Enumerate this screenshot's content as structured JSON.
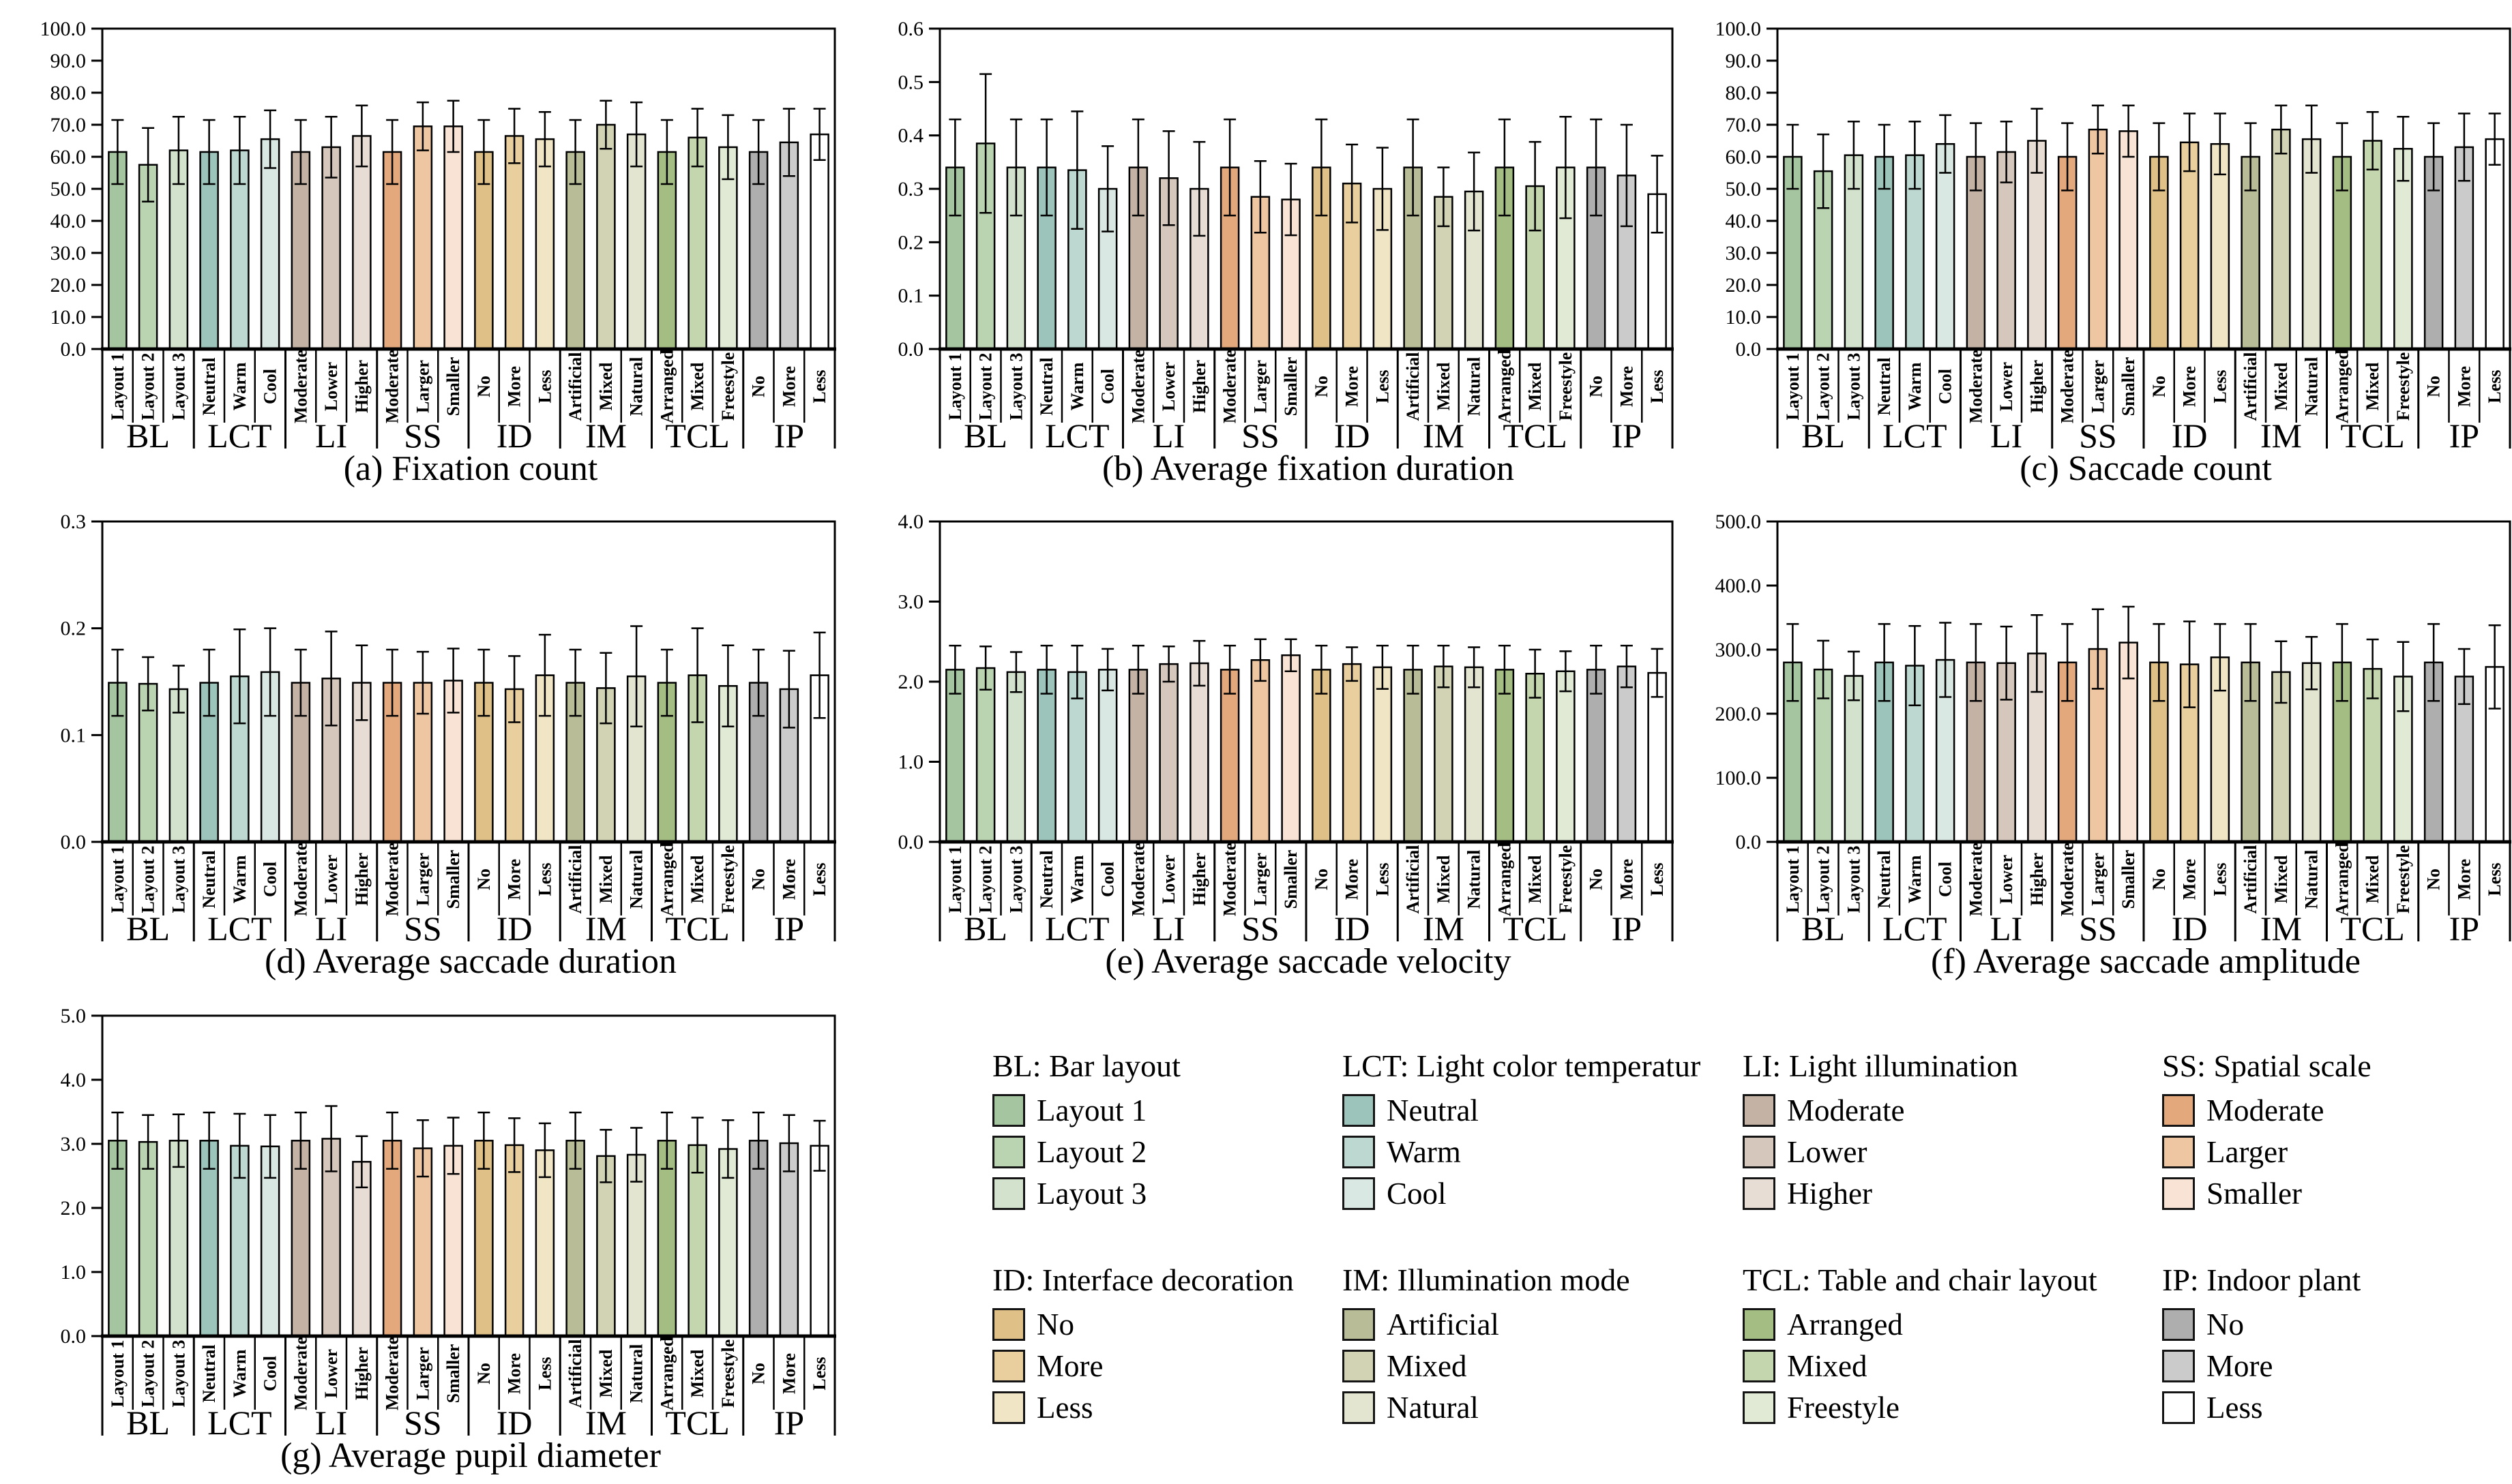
{
  "figure": {
    "background": "#ffffff",
    "description_labels": {
      "group_row": [
        "BL",
        "LCT",
        "LI",
        "SS",
        "ID",
        "IM",
        "TCL",
        "IP"
      ]
    }
  },
  "categories": {
    "group_labels": [
      "BL",
      "LCT",
      "LI",
      "SS",
      "ID",
      "IM",
      "TCL",
      "IP"
    ],
    "item_labels": [
      [
        "Layout 1",
        "Layout 2",
        "Layout 3"
      ],
      [
        "Neutral",
        "Warm",
        "Cool"
      ],
      [
        "Moderate",
        "Lower",
        "Higher"
      ],
      [
        "Moderate",
        "Larger",
        "Smaller"
      ],
      [
        "No",
        "More",
        "Less"
      ],
      [
        "Artificial",
        "Mixed",
        "Natural"
      ],
      [
        "Arranged",
        "Mixed",
        "Freestyle"
      ],
      [
        "No",
        "More",
        "Less"
      ]
    ],
    "colors": [
      [
        "#a5c4a0",
        "#bad3b1",
        "#d2e2cc"
      ],
      [
        "#9dc4ba",
        "#bcd8d0",
        "#d9e8e3"
      ],
      [
        "#c4b2a4",
        "#d6c7bc",
        "#e7ddd4"
      ],
      [
        "#e3a87c",
        "#eec7a2",
        "#f8e3d5"
      ],
      [
        "#dfc188",
        "#e8cf9d",
        "#f0e6c5"
      ],
      [
        "#b9bd97",
        "#d1d3b4",
        "#e3e5d0"
      ],
      [
        "#a4bd82",
        "#c4d6ae",
        "#e0ead4"
      ],
      [
        "#aeaeae",
        "#cbcbcb",
        "#ffffff"
      ]
    ]
  },
  "chart_data": [
    {
      "type": "bar",
      "caption": "(a) Fixation count",
      "ylim": [
        0,
        100
      ],
      "ytick_step": 10,
      "ytick_decimals": 1,
      "grid": false,
      "legend_position": "bottom-right-block",
      "values": [
        61.5,
        57.5,
        62,
        61.5,
        62,
        65.5,
        61.5,
        63,
        66.5,
        61.5,
        69.5,
        69.5,
        61.5,
        66.5,
        65.5,
        61.5,
        70,
        67,
        61.5,
        66,
        63,
        61.5,
        64.5,
        67
      ],
      "errors": [
        10,
        11.5,
        10.5,
        10,
        10.5,
        9,
        10,
        9.5,
        9.5,
        10,
        7.5,
        8,
        10,
        8.5,
        8.5,
        10,
        7.5,
        10,
        10,
        9,
        10,
        10,
        10.5,
        8
      ]
    },
    {
      "type": "bar",
      "caption": "(b) Average fixation duration",
      "ylim": [
        0,
        0.6
      ],
      "ytick_step": 0.1,
      "ytick_decimals": 1,
      "grid": false,
      "values": [
        0.34,
        0.385,
        0.34,
        0.34,
        0.335,
        0.3,
        0.34,
        0.32,
        0.3,
        0.34,
        0.285,
        0.28,
        0.34,
        0.31,
        0.3,
        0.34,
        0.285,
        0.295,
        0.34,
        0.305,
        0.34,
        0.34,
        0.325,
        0.29
      ],
      "errors": [
        0.09,
        0.13,
        0.09,
        0.09,
        0.11,
        0.08,
        0.09,
        0.088,
        0.088,
        0.09,
        0.067,
        0.067,
        0.09,
        0.073,
        0.077,
        0.09,
        0.055,
        0.073,
        0.09,
        0.083,
        0.095,
        0.09,
        0.095,
        0.072
      ]
    },
    {
      "type": "bar",
      "caption": "(c) Saccade count",
      "ylim": [
        0,
        100
      ],
      "ytick_step": 10,
      "ytick_decimals": 1,
      "grid": false,
      "values": [
        60,
        55.5,
        60.5,
        60,
        60.5,
        64,
        60,
        61.5,
        65,
        60,
        68.5,
        68,
        60,
        64.5,
        64,
        60,
        68.5,
        65.5,
        60,
        65,
        62.5,
        60,
        63,
        65.5
      ],
      "errors": [
        10,
        11.5,
        10.5,
        10,
        10.5,
        9,
        10.5,
        9.5,
        10,
        10.5,
        7.5,
        8,
        10.5,
        9,
        9.5,
        10.5,
        7.5,
        10.5,
        10.5,
        9,
        10,
        10.5,
        10.5,
        8
      ]
    },
    {
      "type": "bar",
      "caption": "(d) Average saccade duration",
      "ylim": [
        0,
        0.3
      ],
      "ytick_step": 0.1,
      "ytick_decimals": 1,
      "grid": false,
      "values": [
        0.149,
        0.148,
        0.143,
        0.149,
        0.155,
        0.159,
        0.149,
        0.153,
        0.149,
        0.149,
        0.149,
        0.151,
        0.149,
        0.143,
        0.156,
        0.149,
        0.144,
        0.155,
        0.149,
        0.156,
        0.146,
        0.149,
        0.143,
        0.156
      ],
      "errors": [
        0.031,
        0.025,
        0.022,
        0.031,
        0.044,
        0.041,
        0.031,
        0.044,
        0.035,
        0.031,
        0.029,
        0.03,
        0.031,
        0.031,
        0.038,
        0.031,
        0.033,
        0.047,
        0.031,
        0.044,
        0.038,
        0.031,
        0.036,
        0.04
      ]
    },
    {
      "type": "bar",
      "caption": "(e) Average saccade velocity",
      "ylim": [
        0,
        4
      ],
      "ytick_step": 1,
      "ytick_decimals": 1,
      "grid": false,
      "values": [
        2.15,
        2.17,
        2.12,
        2.15,
        2.12,
        2.15,
        2.15,
        2.22,
        2.23,
        2.15,
        2.27,
        2.33,
        2.15,
        2.22,
        2.18,
        2.15,
        2.19,
        2.18,
        2.15,
        2.1,
        2.13,
        2.15,
        2.19,
        2.11
      ],
      "errors": [
        0.3,
        0.27,
        0.25,
        0.3,
        0.33,
        0.26,
        0.3,
        0.22,
        0.28,
        0.3,
        0.26,
        0.2,
        0.3,
        0.21,
        0.27,
        0.3,
        0.26,
        0.25,
        0.3,
        0.3,
        0.25,
        0.3,
        0.26,
        0.3
      ]
    },
    {
      "type": "bar",
      "caption": "(f) Average saccade amplitude",
      "ylim": [
        0,
        500
      ],
      "ytick_step": 100,
      "ytick_decimals": 1,
      "grid": false,
      "values": [
        280,
        269,
        259,
        280,
        275,
        284,
        280,
        279,
        294,
        280,
        301,
        311,
        280,
        277,
        288,
        280,
        265,
        279,
        280,
        270,
        258,
        280,
        258,
        273
      ],
      "errors": [
        60,
        45,
        38,
        60,
        62,
        58,
        60,
        57,
        60,
        60,
        62,
        56,
        60,
        67,
        52,
        60,
        48,
        41,
        60,
        46,
        54,
        60,
        43,
        65
      ]
    },
    {
      "type": "bar",
      "caption": "(g) Average pupil diameter",
      "ylim": [
        0,
        5
      ],
      "ytick_step": 1,
      "ytick_decimals": 1,
      "grid": false,
      "values": [
        3.05,
        3.03,
        3.05,
        3.05,
        2.97,
        2.96,
        3.05,
        3.08,
        2.72,
        3.05,
        2.93,
        2.97,
        3.05,
        2.98,
        2.9,
        3.05,
        2.81,
        2.83,
        3.05,
        2.98,
        2.92,
        3.05,
        3.01,
        2.97
      ],
      "errors": [
        0.44,
        0.42,
        0.41,
        0.44,
        0.5,
        0.49,
        0.44,
        0.51,
        0.4,
        0.44,
        0.44,
        0.44,
        0.44,
        0.42,
        0.42,
        0.44,
        0.41,
        0.42,
        0.44,
        0.43,
        0.45,
        0.44,
        0.44,
        0.39
      ]
    }
  ],
  "legend": {
    "groups": [
      {
        "title": "BL: Bar layout",
        "items": [
          "Layout 1",
          "Layout 2",
          "Layout 3"
        ],
        "color_set": 0
      },
      {
        "title": "LCT: Light color temperatur",
        "items": [
          "Neutral",
          "Warm",
          "Cool"
        ],
        "color_set": 1
      },
      {
        "title": "LI: Light illumination",
        "items": [
          "Moderate",
          "Lower",
          "Higher"
        ],
        "color_set": 2
      },
      {
        "title": "SS: Spatial scale",
        "items": [
          "Moderate",
          "Larger",
          "Smaller"
        ],
        "color_set": 3
      },
      {
        "title": "ID: Interface decoration",
        "items": [
          "No",
          "More",
          "Less"
        ],
        "color_set": 4
      },
      {
        "title": "IM: Illumination mode",
        "items": [
          "Artificial",
          "Mixed",
          "Natural"
        ],
        "color_set": 5
      },
      {
        "title": "TCL: Table and chair layout",
        "items": [
          "Arranged",
          "Mixed",
          "Freestyle"
        ],
        "color_set": 6
      },
      {
        "title": "IP: Indoor plant",
        "items": [
          "No",
          "More",
          "Less"
        ],
        "color_set": 7
      }
    ]
  }
}
